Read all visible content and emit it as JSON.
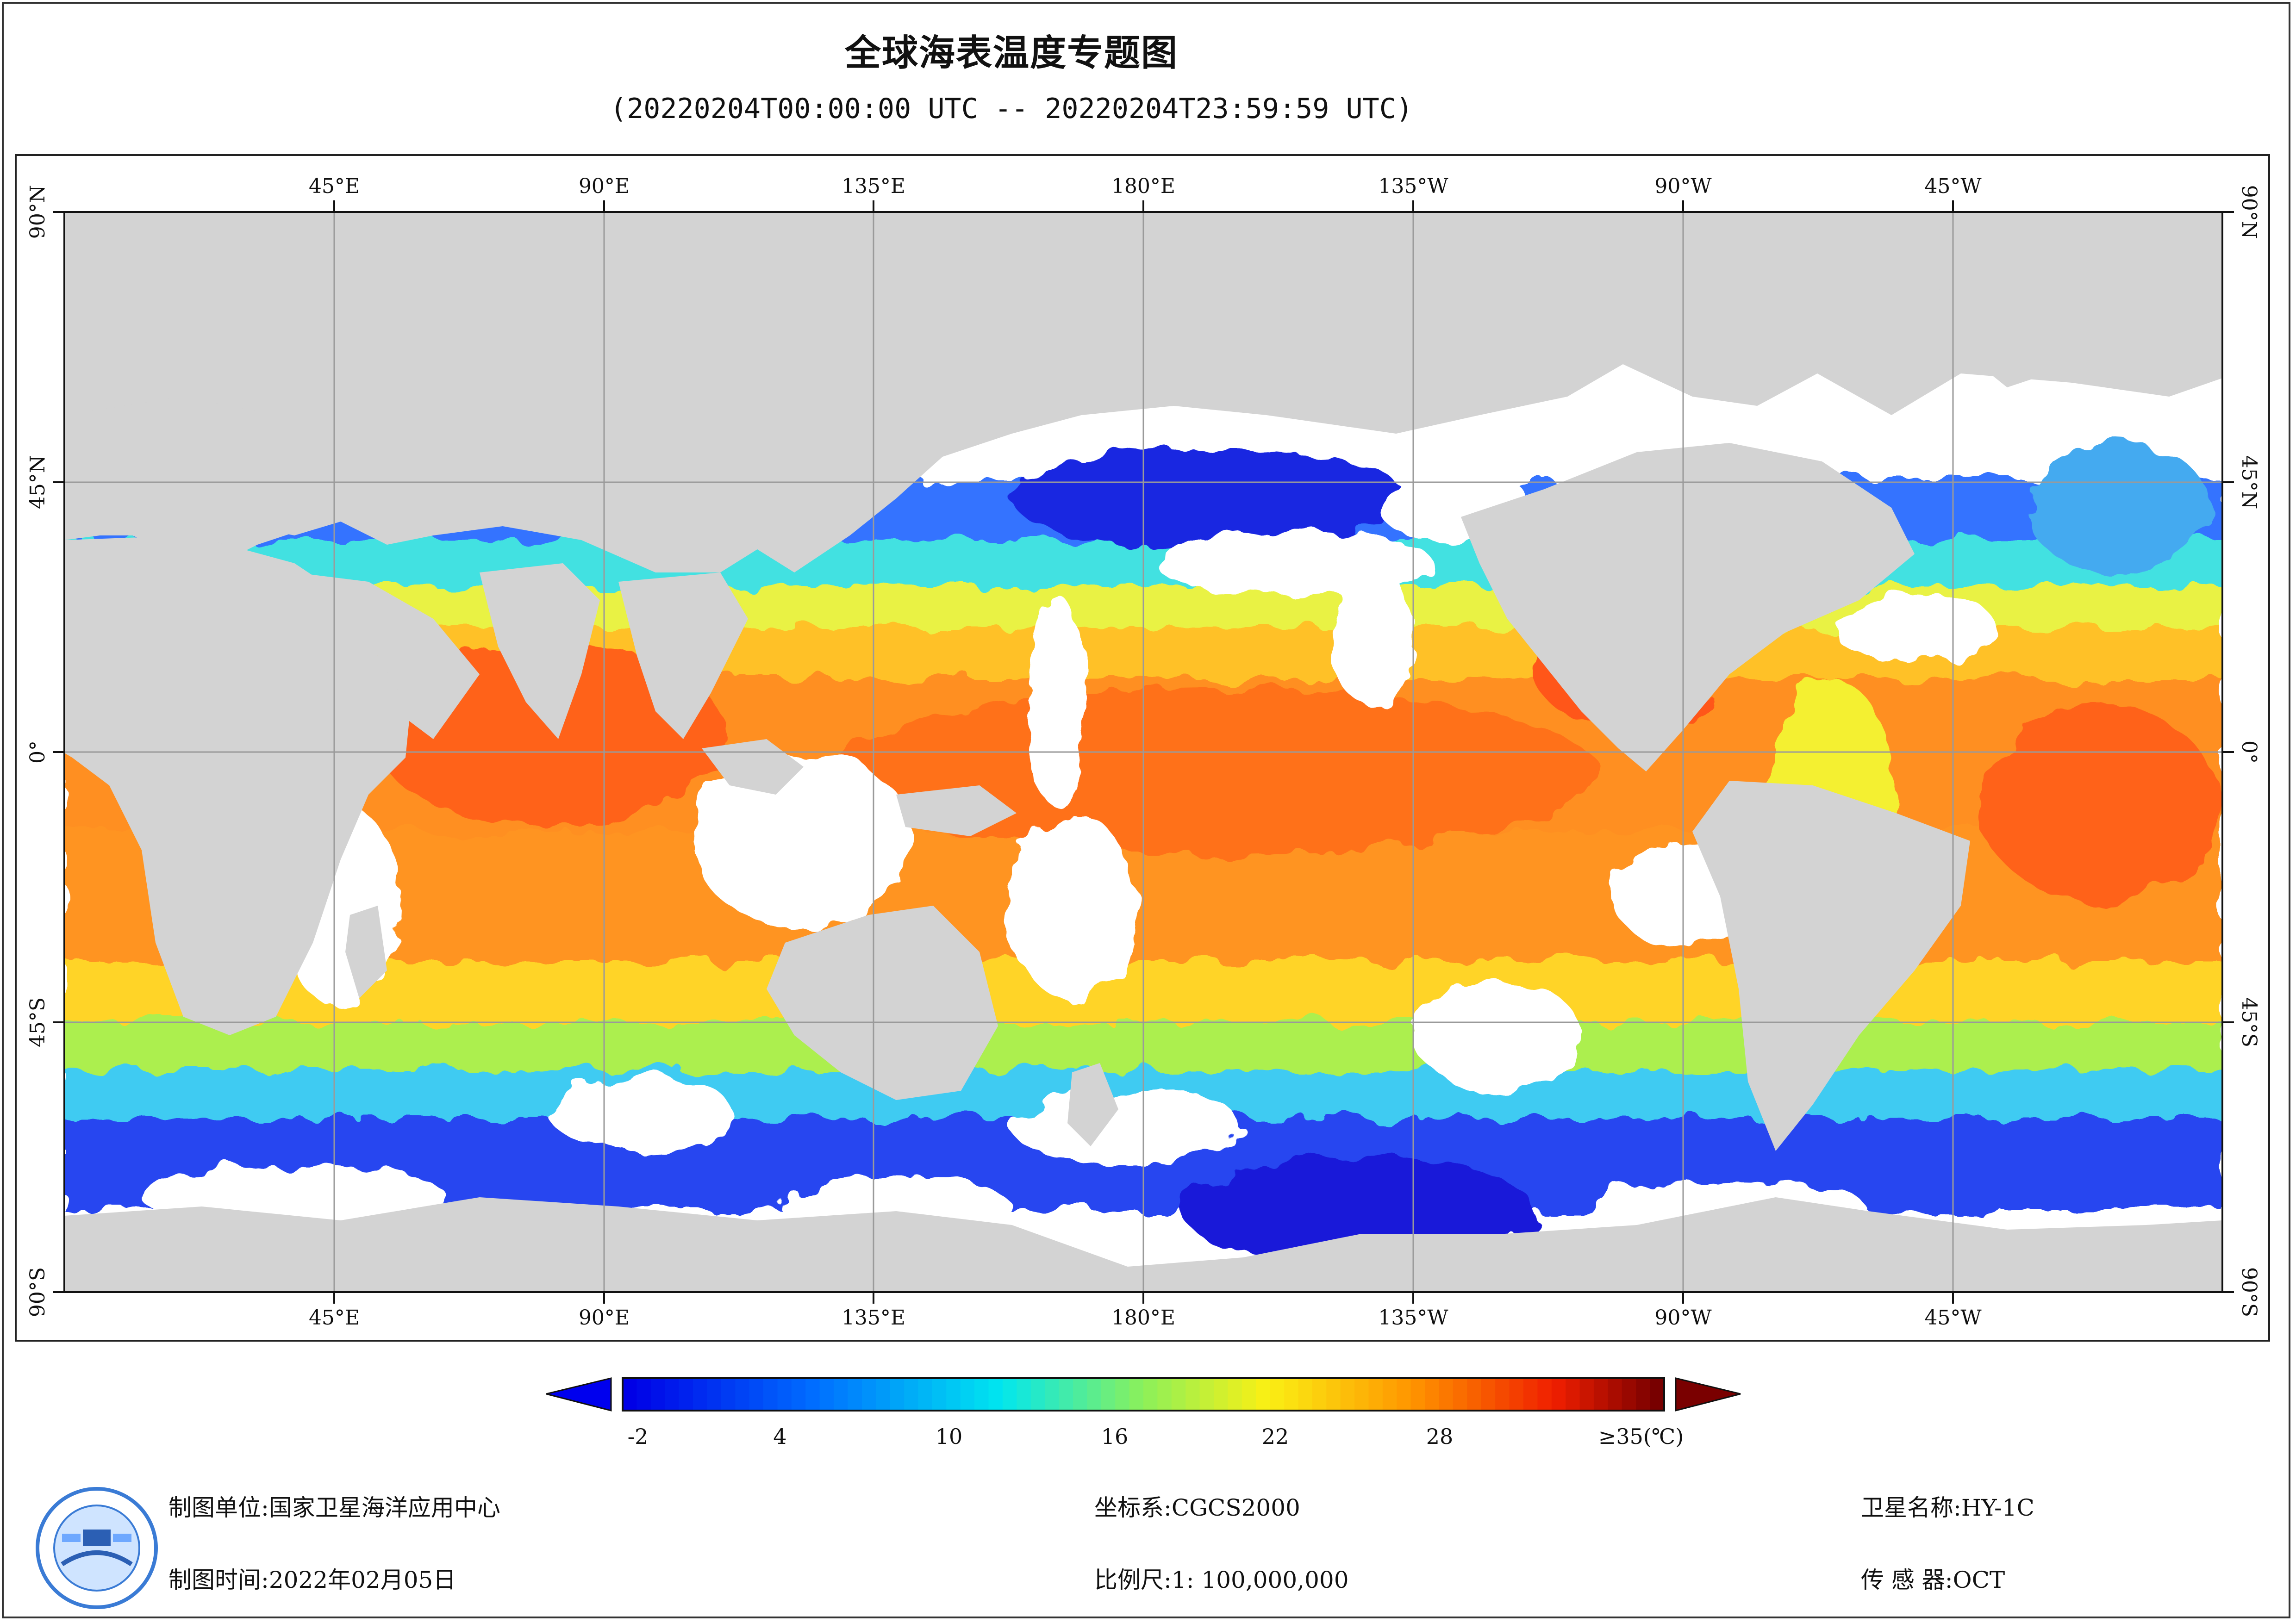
{
  "title": "全球海表温度专题图",
  "subtitle": "(20220204T00:00:00 UTC -- 20220204T23:59:59 UTC)",
  "map": {
    "top_lon_labels": [
      "45°E",
      "90°E",
      "135°E",
      "180°E",
      "135°W",
      "90°W",
      "45°W"
    ],
    "bottom_lon_labels": [
      "45°E",
      "90°E",
      "135°E",
      "180°E",
      "135°W",
      "90°W",
      "45°W"
    ],
    "lat_labels": [
      "90°N",
      "45°N",
      "0°",
      "45°S",
      "90°S"
    ],
    "land_color": "#d3d3d3",
    "nodata_color": "#ffffff",
    "grid_color": "#9a9a9a"
  },
  "colorbar": {
    "tick_labels": [
      "-2",
      "4",
      "10",
      "16",
      "22",
      "28",
      "≥35(℃)"
    ],
    "min": -2,
    "max": 35,
    "under_color": "#0000ee",
    "over_color": "#7a0000"
  },
  "footer": {
    "unit_label": "制图单位:",
    "unit_value": "国家卫星海洋应用中心",
    "time_label": "制图时间:",
    "time_value": "2022年02月05日",
    "crs_label": "坐标系:",
    "crs_value": "CGCS2000",
    "scale_label": "比例尺:",
    "scale_value": "1: 100,000,000",
    "sat_label": "卫星名称:",
    "sat_value": "HY-1C",
    "sensor_label": "传 感 器:",
    "sensor_value": "OCT"
  },
  "logo_icon": "nsoas-emblem-icon"
}
